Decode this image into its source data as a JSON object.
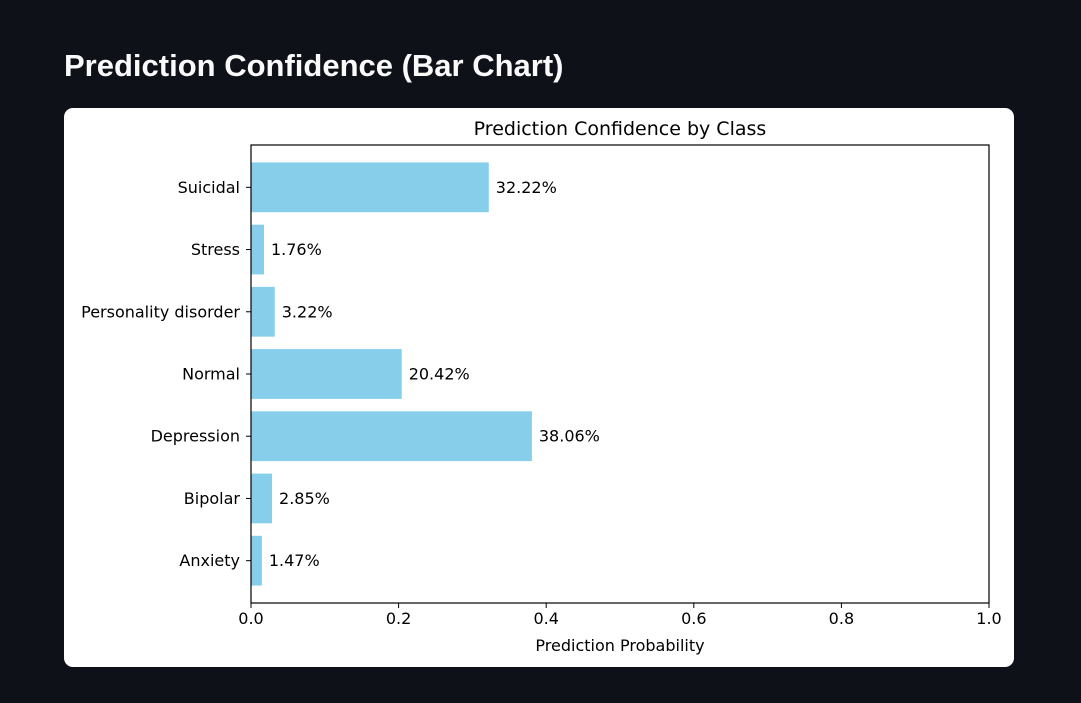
{
  "page": {
    "title": "Prediction Confidence (Bar Chart)"
  },
  "colors": {
    "background": "#0e1117",
    "card": "#ffffff",
    "bar": "#87ceeb",
    "axis": "#000000"
  },
  "chart_data": {
    "type": "bar",
    "orientation": "horizontal",
    "title": "Prediction Confidence by Class",
    "xlabel": "Prediction Probability",
    "ylabel": "",
    "categories": [
      "Anxiety",
      "Bipolar",
      "Depression",
      "Normal",
      "Personality disorder",
      "Stress",
      "Suicidal"
    ],
    "values": [
      0.0147,
      0.0285,
      0.3806,
      0.2042,
      0.0322,
      0.0176,
      0.3222
    ],
    "value_labels": [
      "1.47%",
      "2.85%",
      "38.06%",
      "20.42%",
      "3.22%",
      "1.76%",
      "32.22%"
    ],
    "xlim": [
      0.0,
      1.0
    ],
    "xticks": [
      0.0,
      0.2,
      0.4,
      0.6,
      0.8,
      1.0
    ],
    "xtick_labels": [
      "0.0",
      "0.2",
      "0.4",
      "0.6",
      "0.8",
      "1.0"
    ],
    "grid": false,
    "legend": "none"
  }
}
